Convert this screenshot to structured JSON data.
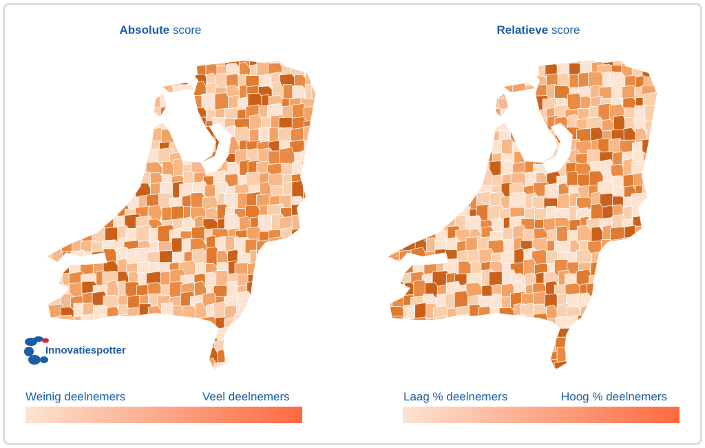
{
  "maps": [
    {
      "title_bold": "Absolute",
      "title_rest": " score",
      "legend_low": "Weinig deelnemers",
      "legend_high": "Veel deelnemers"
    },
    {
      "title_bold": "Relatieve",
      "title_rest": " score",
      "legend_low": "Laag % deelnemers",
      "legend_high": "Hoog % deelnemers"
    }
  ],
  "logo": {
    "text": "Innovatiespotter"
  },
  "colors": {
    "legend_low": "#fde3d1",
    "legend_high": "#fd6a40",
    "map_dark": "#c85a10",
    "map_mid": "#e8843a",
    "map_light": "#f7c9a3",
    "brand_blue": "#1a5ea8",
    "logo_red": "#d9233a"
  }
}
